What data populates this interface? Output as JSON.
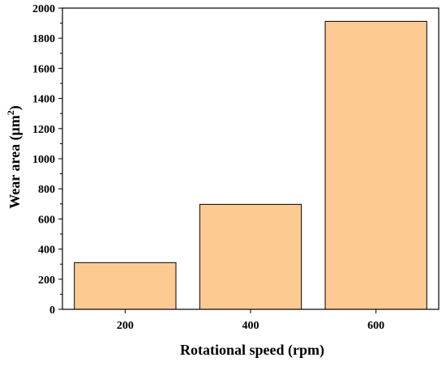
{
  "chart_data": {
    "type": "bar",
    "categories": [
      "200",
      "400",
      "600"
    ],
    "values": [
      310,
      697,
      1912
    ],
    "xlabel": "Rotational speed (rpm)",
    "ylabel_main": "Wear area (μm",
    "ylabel_sup": "2",
    "ylabel_close": ")",
    "ylim": [
      0,
      2000
    ],
    "yticks": [
      0,
      200,
      400,
      600,
      800,
      1000,
      1200,
      1400,
      1600,
      1800,
      2000
    ],
    "grid": false,
    "legend": "none",
    "bar_fill": "#FDCB92",
    "bar_stroke": "#000000"
  }
}
